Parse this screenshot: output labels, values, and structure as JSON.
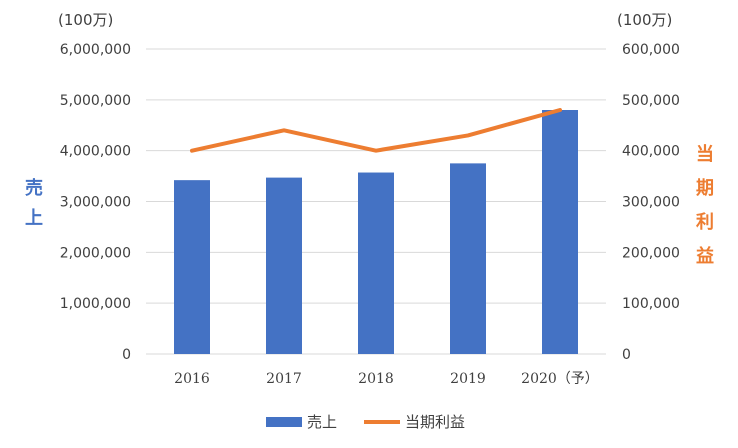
{
  "chart_data": {
    "type": "bar",
    "categories": [
      "2016",
      "2017",
      "2018",
      "2019",
      "2020（予）"
    ],
    "series": [
      {
        "name": "売上",
        "kind": "bar",
        "axis": "left",
        "color": "#4472C4",
        "values": [
          3420000,
          3470000,
          3570000,
          3750000,
          4800000
        ]
      },
      {
        "name": "当期利益",
        "kind": "line",
        "axis": "right",
        "color": "#ED7D31",
        "values": [
          400000,
          440000,
          400000,
          430000,
          480000
        ]
      }
    ],
    "left_axis": {
      "unit": "(100万)",
      "label": "売上",
      "ylim": [
        0,
        6000000
      ],
      "ticks": [
        "0",
        "1,000,000",
        "2,000,000",
        "3,000,000",
        "4,000,000",
        "5,000,000",
        "6,000,000"
      ]
    },
    "right_axis": {
      "unit": "(100万)",
      "label": "当期利益",
      "ylim": [
        0,
        600000
      ],
      "ticks": [
        "0",
        "100,000",
        "200,000",
        "300,000",
        "400,000",
        "500,000",
        "600,000"
      ]
    },
    "grid": true,
    "legend_position": "bottom",
    "legend": [
      "売上",
      "当期利益"
    ]
  }
}
